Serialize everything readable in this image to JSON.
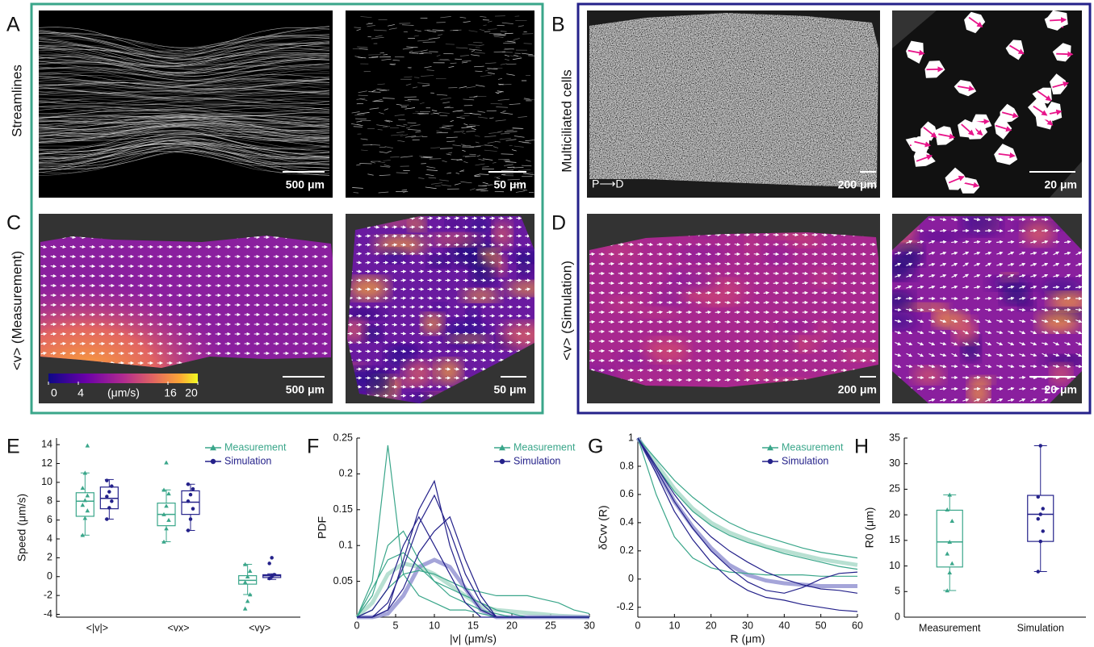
{
  "panels": [
    {
      "letter": "A",
      "row_label": "Streamlines",
      "scale_bars": [
        "500 μm",
        "50 μm"
      ]
    },
    {
      "letter": "B",
      "row_label": "Multiciliated cells",
      "scale_bars": [
        "200 μm",
        "20 μm"
      ],
      "axis_label": "P⟶D"
    },
    {
      "letter": "C",
      "row_label": "<v> (Measurement)",
      "scale_bars": [
        "500 μm",
        "50 μm"
      ],
      "colorbar": {
        "lim": [
          0,
          20
        ],
        "ticks": [
          0,
          4,
          16,
          20
        ],
        "label": "(μm/s)"
      }
    },
    {
      "letter": "D",
      "row_label": "<v> (Simulation)",
      "scale_bars": [
        "200 μm",
        "20 μm"
      ]
    }
  ],
  "chart_data": [
    {
      "type": "box",
      "panel_label": "E",
      "ylabel": "Speed (μm/s)",
      "categories": [
        "<|v|>",
        "<vx>",
        "<vy>"
      ],
      "ylim": [
        -4.3,
        14.7
      ],
      "yticks": [
        -4,
        -2,
        0,
        2,
        4,
        6,
        8,
        10,
        12,
        14
      ],
      "legend": "upper right",
      "series": [
        {
          "name": "Measurement",
          "color": "#3aa68a",
          "marker": "triangle",
          "boxes": [
            [
              4.4,
              6.4,
              8,
              8.9,
              11
            ],
            [
              3.7,
              5.4,
              6.6,
              7.8,
              9.2
            ],
            [
              -1.9,
              -0.8,
              -0.4,
              0.1,
              1.3
            ]
          ],
          "points": [
            [
              4.4,
              6.2,
              7,
              7.6,
              8.1,
              8.6,
              9.4,
              11,
              13.9
            ],
            [
              3.7,
              5.1,
              6,
              6.6,
              7.5,
              8.8,
              9.2,
              12.1
            ],
            [
              -3.4,
              -2.6,
              -1.9,
              -0.6,
              0,
              0.6,
              1.3
            ]
          ]
        },
        {
          "name": "Simulation",
          "color": "#24218a",
          "marker": "circle",
          "boxes": [
            [
              6.1,
              7.2,
              8.3,
              9.5,
              10.3
            ],
            [
              4.9,
              6.6,
              7.9,
              9.1,
              9.8
            ],
            [
              -0.3,
              -0.1,
              0.1,
              0.2,
              0.3
            ]
          ],
          "points": [
            [
              6.1,
              7.3,
              8,
              8.5,
              9,
              9.6,
              10.2
            ],
            [
              4.9,
              6.1,
              7.2,
              8,
              8.7,
              9.3,
              9.8
            ],
            [
              -0.2,
              0,
              0.2,
              1.4,
              2
            ]
          ]
        }
      ]
    },
    {
      "type": "line",
      "panel_label": "F",
      "ylabel": "PDF",
      "xlabel": "|v| (μm/s)",
      "x": [
        0,
        2,
        4,
        6,
        8,
        10,
        12,
        14,
        16,
        18,
        20,
        22,
        24,
        26,
        28,
        30
      ],
      "xlim": [
        0,
        30
      ],
      "xticks": [
        0,
        5,
        10,
        15,
        20,
        25,
        30
      ],
      "ylim": [
        0,
        0.25
      ],
      "yticks": [
        0.05,
        0.1,
        0.15,
        0.2,
        0.25
      ],
      "legend": "upper right",
      "series": [
        {
          "name": "Measurement",
          "color": "#3aa68a",
          "mean_color": "#a6d8c7",
          "marker": "triangle",
          "mean": [
            0,
            0.02,
            0.06,
            0.075,
            0.07,
            0.06,
            0.045,
            0.03,
            0.015,
            0.01,
            0.008,
            0.006,
            0.004,
            0.002,
            0.001,
            0
          ],
          "curves": [
            [
              0,
              0.05,
              0.24,
              0.06,
              0.03,
              0.02,
              0.01,
              0.01,
              0.005,
              0,
              0,
              0,
              0,
              0,
              0,
              0
            ],
            [
              0,
              0.03,
              0.1,
              0.12,
              0.08,
              0.05,
              0.04,
              0.03,
              0.02,
              0.01,
              0.005,
              0,
              0,
              0,
              0,
              0
            ],
            [
              0,
              0.01,
              0.04,
              0.06,
              0.065,
              0.06,
              0.05,
              0.04,
              0.035,
              0.03,
              0.03,
              0.03,
              0.025,
              0.02,
              0.01,
              0.005
            ],
            [
              0,
              0.04,
              0.08,
              0.09,
              0.07,
              0.05,
              0.03,
              0.02,
              0.01,
              0.005,
              0,
              0,
              0,
              0,
              0,
              0
            ]
          ]
        },
        {
          "name": "Simulation",
          "color": "#24218a",
          "mean_color": "#8f8fd0",
          "marker": "circle",
          "mean": [
            0,
            0,
            0.005,
            0.03,
            0.07,
            0.08,
            0.07,
            0.04,
            0.01,
            0,
            0,
            0,
            0,
            0,
            0,
            0
          ],
          "curves": [
            [
              0,
              0,
              0.01,
              0.08,
              0.15,
              0.19,
              0.1,
              0.04,
              0.01,
              0,
              0,
              0,
              0,
              0,
              0,
              0
            ],
            [
              0,
              0,
              0.02,
              0.07,
              0.13,
              0.17,
              0.12,
              0.06,
              0.02,
              0,
              0,
              0,
              0,
              0,
              0,
              0
            ],
            [
              0,
              0,
              0.01,
              0.04,
              0.09,
              0.12,
              0.14,
              0.08,
              0.03,
              0,
              0,
              0,
              0,
              0,
              0,
              0
            ],
            [
              0,
              0.01,
              0.04,
              0.1,
              0.14,
              0.1,
              0.06,
              0.02,
              0,
              0,
              0,
              0,
              0,
              0,
              0,
              0
            ]
          ]
        }
      ]
    },
    {
      "type": "line",
      "panel_label": "G",
      "ylabel": "δCvv (R)",
      "xlabel": "R (μm)",
      "x": [
        0,
        5,
        10,
        15,
        20,
        25,
        30,
        35,
        40,
        45,
        50,
        55,
        60
      ],
      "xlim": [
        0,
        60
      ],
      "xticks": [
        0,
        10,
        20,
        30,
        40,
        50,
        60
      ],
      "ylim": [
        -0.27,
        1
      ],
      "yticks": [
        -0.2,
        0,
        0.2,
        0.4,
        0.6,
        0.8,
        1
      ],
      "legend": "upper right",
      "series": [
        {
          "name": "Measurement",
          "color": "#3aa68a",
          "mean_color": "#a6d8c7",
          "marker": "triangle",
          "mean": [
            1,
            0.82,
            0.64,
            0.5,
            0.4,
            0.33,
            0.28,
            0.23,
            0.2,
            0.17,
            0.14,
            0.12,
            0.1
          ],
          "curves": [
            [
              1,
              0.85,
              0.7,
              0.58,
              0.48,
              0.4,
              0.34,
              0.3,
              0.26,
              0.22,
              0.19,
              0.17,
              0.15
            ],
            [
              1,
              0.8,
              0.62,
              0.48,
              0.38,
              0.31,
              0.26,
              0.22,
              0.18,
              0.15,
              0.12,
              0.09,
              0.07
            ],
            [
              1,
              0.6,
              0.3,
              0.15,
              0.08,
              0.05,
              0.04,
              0.03,
              0.03,
              0.03,
              0.02,
              0.02,
              0.02
            ]
          ]
        },
        {
          "name": "Simulation",
          "color": "#24218a",
          "mean_color": "#8f8fd0",
          "marker": "circle",
          "mean": [
            1,
            0.78,
            0.55,
            0.37,
            0.22,
            0.1,
            0.03,
            -0.01,
            -0.03,
            -0.04,
            -0.05,
            -0.05,
            -0.05
          ],
          "curves": [
            [
              1,
              0.8,
              0.6,
              0.43,
              0.3,
              0.2,
              0.12,
              0.05,
              0,
              -0.04,
              -0.07,
              -0.08,
              -0.1
            ],
            [
              1,
              0.75,
              0.48,
              0.28,
              0.12,
              0,
              -0.08,
              -0.13,
              -0.15,
              -0.18,
              -0.2,
              -0.22,
              -0.23
            ],
            [
              1,
              0.78,
              0.55,
              0.36,
              0.2,
              0.08,
              -0.02,
              -0.08,
              -0.1,
              -0.06,
              0,
              0.04,
              0.05
            ]
          ]
        }
      ]
    },
    {
      "type": "box",
      "panel_label": "H",
      "ylabel": "R0 (μm)",
      "categories": [
        "Measurement",
        "Simulation"
      ],
      "ylim": [
        0,
        35
      ],
      "yticks": [
        0,
        5,
        10,
        15,
        20,
        25,
        30,
        35
      ],
      "series": [
        {
          "color": "#3aa68a",
          "marker": "triangle",
          "boxes": [
            [
              5.2,
              9.8,
              14.7,
              20.9,
              23.9
            ],
            null
          ],
          "points": [
            [
              5.2,
              8.7,
              10.5,
              12.4,
              14.7,
              18.8,
              21,
              23.9
            ],
            null
          ]
        },
        {
          "color": "#24218a",
          "marker": "circle",
          "boxes": [
            null,
            [
              8.9,
              14.8,
              20.1,
              23.8,
              33.5
            ]
          ],
          "points": [
            null,
            [
              8.9,
              14.8,
              16.8,
              19.2,
              20.1,
              21.2,
              23.5,
              33.5
            ]
          ]
        }
      ]
    }
  ]
}
